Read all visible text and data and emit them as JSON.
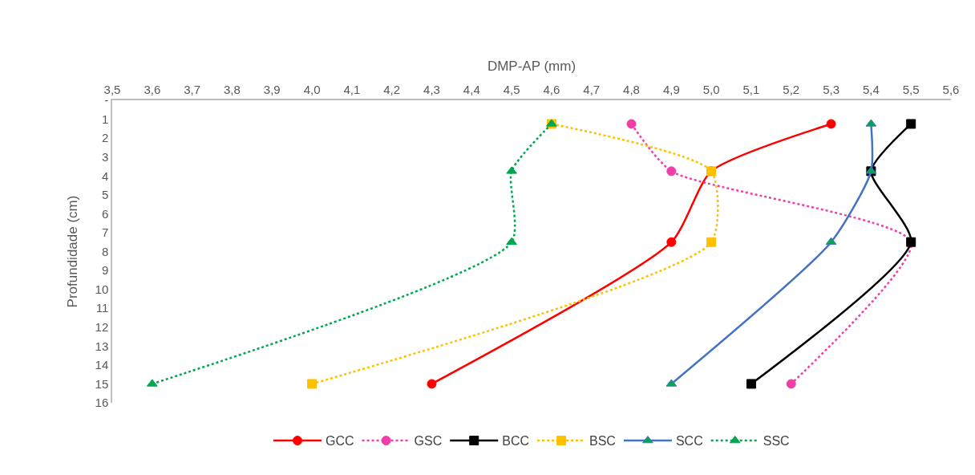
{
  "chart_data": {
    "type": "line",
    "xlabel": "DMP-AP (mm)",
    "ylabel": "Profundidade (cm)",
    "xlim": [
      3.5,
      5.6
    ],
    "xticks": [
      {
        "value": 3.5,
        "label": "3,5"
      },
      {
        "value": 3.6,
        "label": "3,6"
      },
      {
        "value": 3.7,
        "label": "3,7"
      },
      {
        "value": 3.8,
        "label": "3,8"
      },
      {
        "value": 3.9,
        "label": "3,9"
      },
      {
        "value": 4.0,
        "label": "4,0"
      },
      {
        "value": 4.1,
        "label": "4,1"
      },
      {
        "value": 4.2,
        "label": "4,2"
      },
      {
        "value": 4.3,
        "label": "4,3"
      },
      {
        "value": 4.4,
        "label": "4,4"
      },
      {
        "value": 4.5,
        "label": "4,5"
      },
      {
        "value": 4.6,
        "label": "4,6"
      },
      {
        "value": 4.7,
        "label": "4,7"
      },
      {
        "value": 4.8,
        "label": "4,8"
      },
      {
        "value": 4.9,
        "label": "4,9"
      },
      {
        "value": 5.0,
        "label": "5,0"
      },
      {
        "value": 5.1,
        "label": "5,1"
      },
      {
        "value": 5.2,
        "label": "5,2"
      },
      {
        "value": 5.3,
        "label": "5,3"
      },
      {
        "value": 5.4,
        "label": "5,4"
      },
      {
        "value": 5.5,
        "label": "5,5"
      },
      {
        "value": 5.6,
        "label": "5,6"
      }
    ],
    "ylim": [
      16,
      0
    ],
    "yticks": [
      {
        "value": 0,
        "label": "-"
      },
      1,
      2,
      3,
      4,
      5,
      6,
      7,
      8,
      9,
      10,
      11,
      12,
      13,
      14,
      15,
      16
    ],
    "grid": false,
    "legend": "bottom",
    "series": [
      {
        "name": "GCC",
        "color": "#ff0000",
        "marker": "circle",
        "line_style": "solid",
        "x": [
          5.3,
          5.0,
          4.9,
          4.3
        ],
        "values": [
          1.25,
          3.75,
          7.5,
          15
        ]
      },
      {
        "name": "GSC",
        "color": "#ee3fa8",
        "marker": "circle",
        "line_style": "dotted",
        "x": [
          4.8,
          4.9,
          5.5,
          5.2
        ],
        "values": [
          1.25,
          3.75,
          7.5,
          15
        ]
      },
      {
        "name": "BCC",
        "color": "#000000",
        "marker": "square",
        "line_style": "solid",
        "x": [
          5.5,
          5.4,
          5.5,
          5.1
        ],
        "values": [
          1.25,
          3.75,
          7.5,
          15
        ]
      },
      {
        "name": "BSC",
        "color": "#ffc000",
        "marker": "square",
        "line_style": "dotted",
        "x": [
          4.6,
          5.0,
          5.0,
          4.0
        ],
        "values": [
          1.25,
          3.75,
          7.5,
          15
        ]
      },
      {
        "name": "SCC",
        "color": "#4472c4",
        "colors": [
          "#00a650",
          "#00a650",
          "#00a650",
          "#00a650"
        ],
        "marker": "triangle",
        "line_style": "solid",
        "x": [
          5.4,
          5.4,
          5.3,
          4.9
        ],
        "values": [
          1.25,
          3.75,
          7.5,
          15
        ]
      },
      {
        "name": "SSC",
        "color": "#00a650",
        "marker": "triangle",
        "line_style": "dotted",
        "x": [
          4.6,
          4.5,
          4.5,
          3.6
        ],
        "values": [
          1.25,
          3.75,
          7.5,
          15
        ]
      }
    ]
  }
}
